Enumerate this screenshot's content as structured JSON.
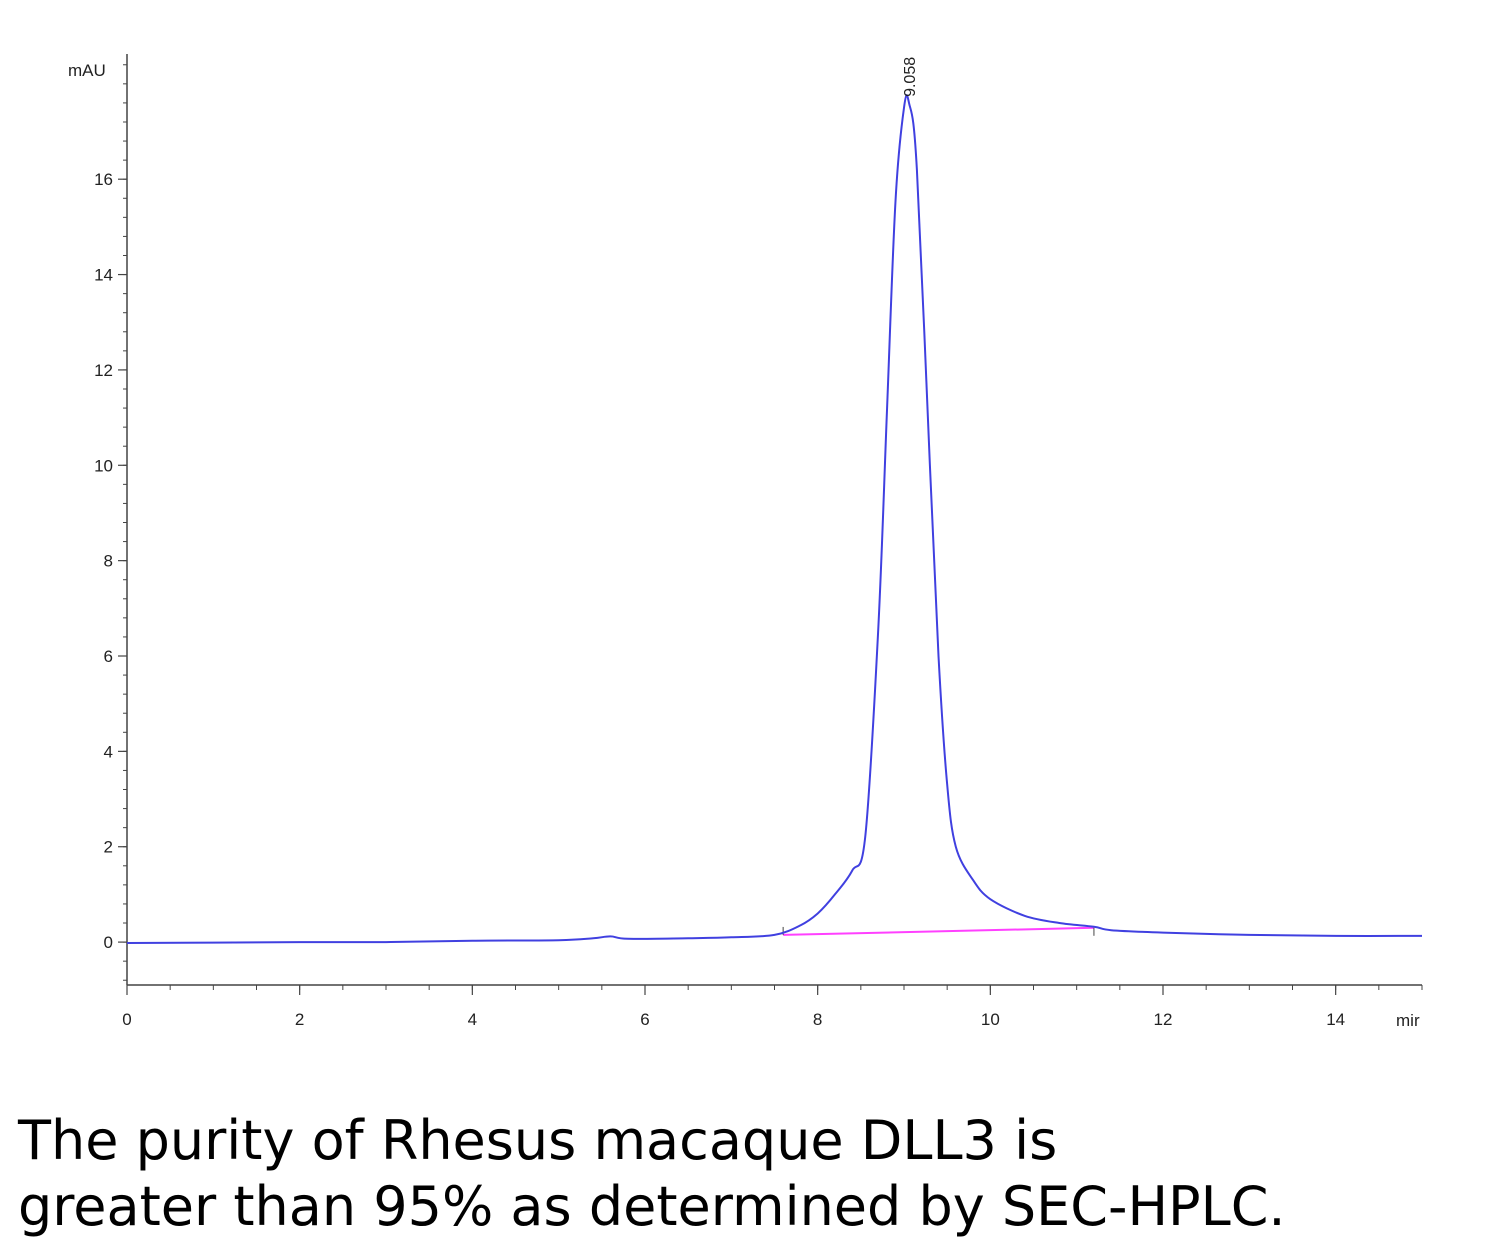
{
  "chart_data": {
    "type": "line",
    "ylabel": "mAU",
    "xlabel": "mir",
    "xlim": [
      0,
      15
    ],
    "ylim": [
      -0.9,
      18.5
    ],
    "x_ticks": [
      0,
      2,
      4,
      6,
      8,
      10,
      12,
      14
    ],
    "y_ticks": [
      0,
      2,
      4,
      6,
      8,
      10,
      12,
      14,
      16
    ],
    "peak_label": "9.058",
    "colors": {
      "trace": "#4040e0",
      "baseline": "#ff40ff",
      "axis": "#444444"
    },
    "series": [
      {
        "x": [
          0,
          1,
          2,
          3,
          4,
          5,
          5.4,
          5.6,
          5.8,
          6.5,
          7.0,
          7.5,
          7.8,
          8.0,
          8.2,
          8.4,
          8.55,
          8.7,
          8.8,
          8.9,
          9.0,
          9.058,
          9.15,
          9.3,
          9.4,
          9.5,
          9.6,
          9.8,
          10.0,
          10.4,
          10.8,
          11.2,
          11.4,
          12,
          13,
          14,
          15
        ],
        "y": [
          -0.02,
          -0.01,
          0.0,
          0.0,
          0.03,
          0.04,
          0.08,
          0.12,
          0.07,
          0.08,
          0.1,
          0.15,
          0.35,
          0.6,
          1.0,
          1.5,
          2.2,
          6.5,
          11.0,
          15.5,
          17.5,
          17.6,
          16.2,
          10.0,
          6.0,
          3.3,
          2.0,
          1.3,
          0.9,
          0.55,
          0.4,
          0.32,
          0.25,
          0.2,
          0.15,
          0.13,
          0.13
        ]
      }
    ],
    "baseline": {
      "x": [
        7.6,
        11.2
      ],
      "y": [
        0.15,
        0.3
      ]
    }
  },
  "caption": {
    "line1": "The purity of Rhesus macaque DLL3 is",
    "line2": "greater than 95% as determined by SEC-HPLC."
  }
}
